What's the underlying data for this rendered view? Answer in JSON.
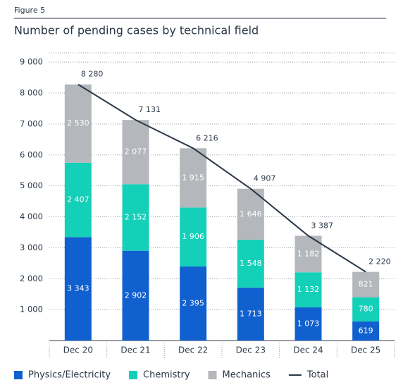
{
  "chart_data": {
    "type": "stacked-bar-line",
    "figure_label": "Figure 5",
    "title": "Number of pending cases by technical field",
    "categories": [
      "Dec 20",
      "Dec 21",
      "Dec 22",
      "Dec 23",
      "Dec 24",
      "Dec 25"
    ],
    "series": [
      {
        "name": "Physics/Electricity",
        "color": "#1160d0",
        "values": [
          3343,
          2902,
          2395,
          1713,
          1073,
          619
        ],
        "value_labels": [
          "3 343",
          "2 902",
          "2 395",
          "1 713",
          "1 073",
          "619"
        ]
      },
      {
        "name": "Chemistry",
        "color": "#14d0b9",
        "values": [
          2407,
          2152,
          1906,
          1548,
          1132,
          780
        ],
        "value_labels": [
          "2 407",
          "2 152",
          "1 906",
          "1 548",
          "1 132",
          "780"
        ]
      },
      {
        "name": "Mechanics",
        "color": "#b4b7bb",
        "values": [
          2530,
          2077,
          1915,
          1646,
          1182,
          821
        ],
        "value_labels": [
          "2 530",
          "2 077",
          "1 915",
          "1 646",
          "1 182",
          "821"
        ]
      }
    ],
    "total": {
      "name": "Total",
      "color": "#2b3848",
      "values": [
        8280,
        7131,
        6216,
        4907,
        3387,
        2220
      ],
      "value_labels": [
        "8 280",
        "7 131",
        "6 216",
        "4 907",
        "3 387",
        "2 220"
      ]
    },
    "ylim": [
      0,
      9300
    ],
    "yticks": [
      {
        "value": 1000,
        "label": "1 000"
      },
      {
        "value": 2000,
        "label": "2 000"
      },
      {
        "value": 3000,
        "label": "3 000"
      },
      {
        "value": 4000,
        "label": "4 000"
      },
      {
        "value": 5000,
        "label": "5 000"
      },
      {
        "value": 6000,
        "label": "6 000"
      },
      {
        "value": 7000,
        "label": "7 000"
      },
      {
        "value": 8000,
        "label": "8 000"
      },
      {
        "value": 9000,
        "label": "9 000"
      }
    ],
    "grid": true
  }
}
